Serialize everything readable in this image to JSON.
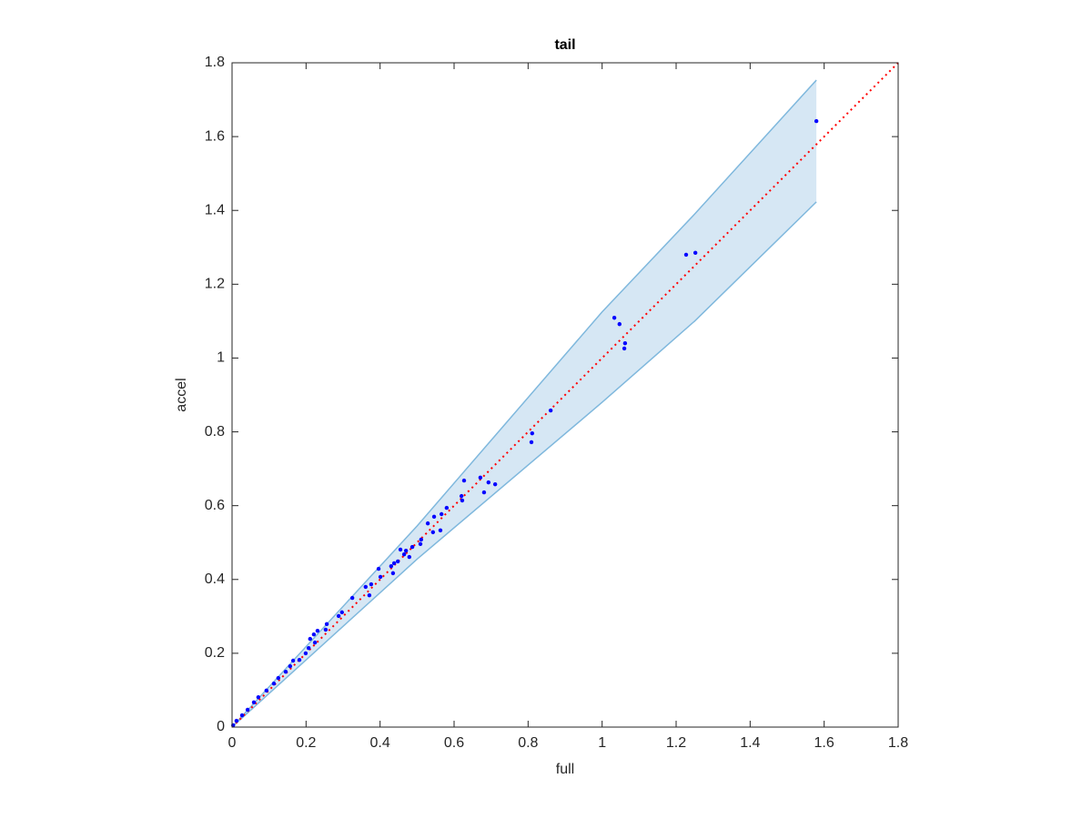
{
  "chart_data": {
    "type": "scatter",
    "title": "tail",
    "x_label": "full",
    "y_label": "accel",
    "xlim": [
      0,
      1.8
    ],
    "ylim": [
      0,
      1.8
    ],
    "xticks": [
      0,
      0.2,
      0.4,
      0.6,
      0.8,
      1,
      1.2,
      1.4,
      1.6,
      1.8
    ],
    "yticks": [
      0,
      0.2,
      0.4,
      0.6,
      0.8,
      1,
      1.2,
      1.4,
      1.6,
      1.8
    ],
    "color": "#0000ff",
    "x": [
      1.579,
      1.227,
      1.252,
      1.033,
      1.047,
      1.062,
      1.06,
      0.861,
      0.811,
      0.809,
      0.671,
      0.627,
      0.693,
      0.711,
      0.681,
      0.62,
      0.622,
      0.58,
      0.566,
      0.546,
      0.529,
      0.543,
      0.563,
      0.511,
      0.509,
      0.487,
      0.47,
      0.455,
      0.465,
      0.479,
      0.448,
      0.438,
      0.43,
      0.435,
      0.396,
      0.401,
      0.376,
      0.361,
      0.371,
      0.325,
      0.297,
      0.288,
      0.256,
      0.253,
      0.231,
      0.221,
      0.211,
      0.224,
      0.207,
      0.199,
      0.182,
      0.165,
      0.157,
      0.145,
      0.125,
      0.113,
      0.093,
      0.071,
      0.059,
      0.042,
      0.027,
      0.012,
      0.003
    ],
    "values": [
      1.642,
      1.28,
      1.285,
      1.109,
      1.092,
      1.04,
      1.026,
      0.858,
      0.796,
      0.772,
      0.676,
      0.668,
      0.663,
      0.658,
      0.636,
      0.626,
      0.614,
      0.594,
      0.577,
      0.57,
      0.552,
      0.528,
      0.533,
      0.508,
      0.496,
      0.488,
      0.478,
      0.481,
      0.468,
      0.461,
      0.449,
      0.444,
      0.436,
      0.417,
      0.429,
      0.407,
      0.387,
      0.38,
      0.357,
      0.35,
      0.311,
      0.301,
      0.279,
      0.264,
      0.261,
      0.251,
      0.239,
      0.229,
      0.214,
      0.2,
      0.182,
      0.18,
      0.165,
      0.15,
      0.133,
      0.118,
      0.099,
      0.081,
      0.067,
      0.047,
      0.032,
      0.017,
      0.005
    ],
    "band": {
      "color": "#7fb8dd",
      "fill": "#d6e7f4",
      "x": [
        0,
        0.5,
        1.0,
        1.25,
        1.579
      ],
      "upper": [
        0,
        0.545,
        1.125,
        1.39,
        1.753
      ],
      "lower": [
        0,
        0.455,
        0.88,
        1.1,
        1.423
      ]
    },
    "reference_line": {
      "color": "#ff0000",
      "x": [
        0,
        1.8
      ],
      "values": [
        0,
        1.8
      ]
    }
  }
}
